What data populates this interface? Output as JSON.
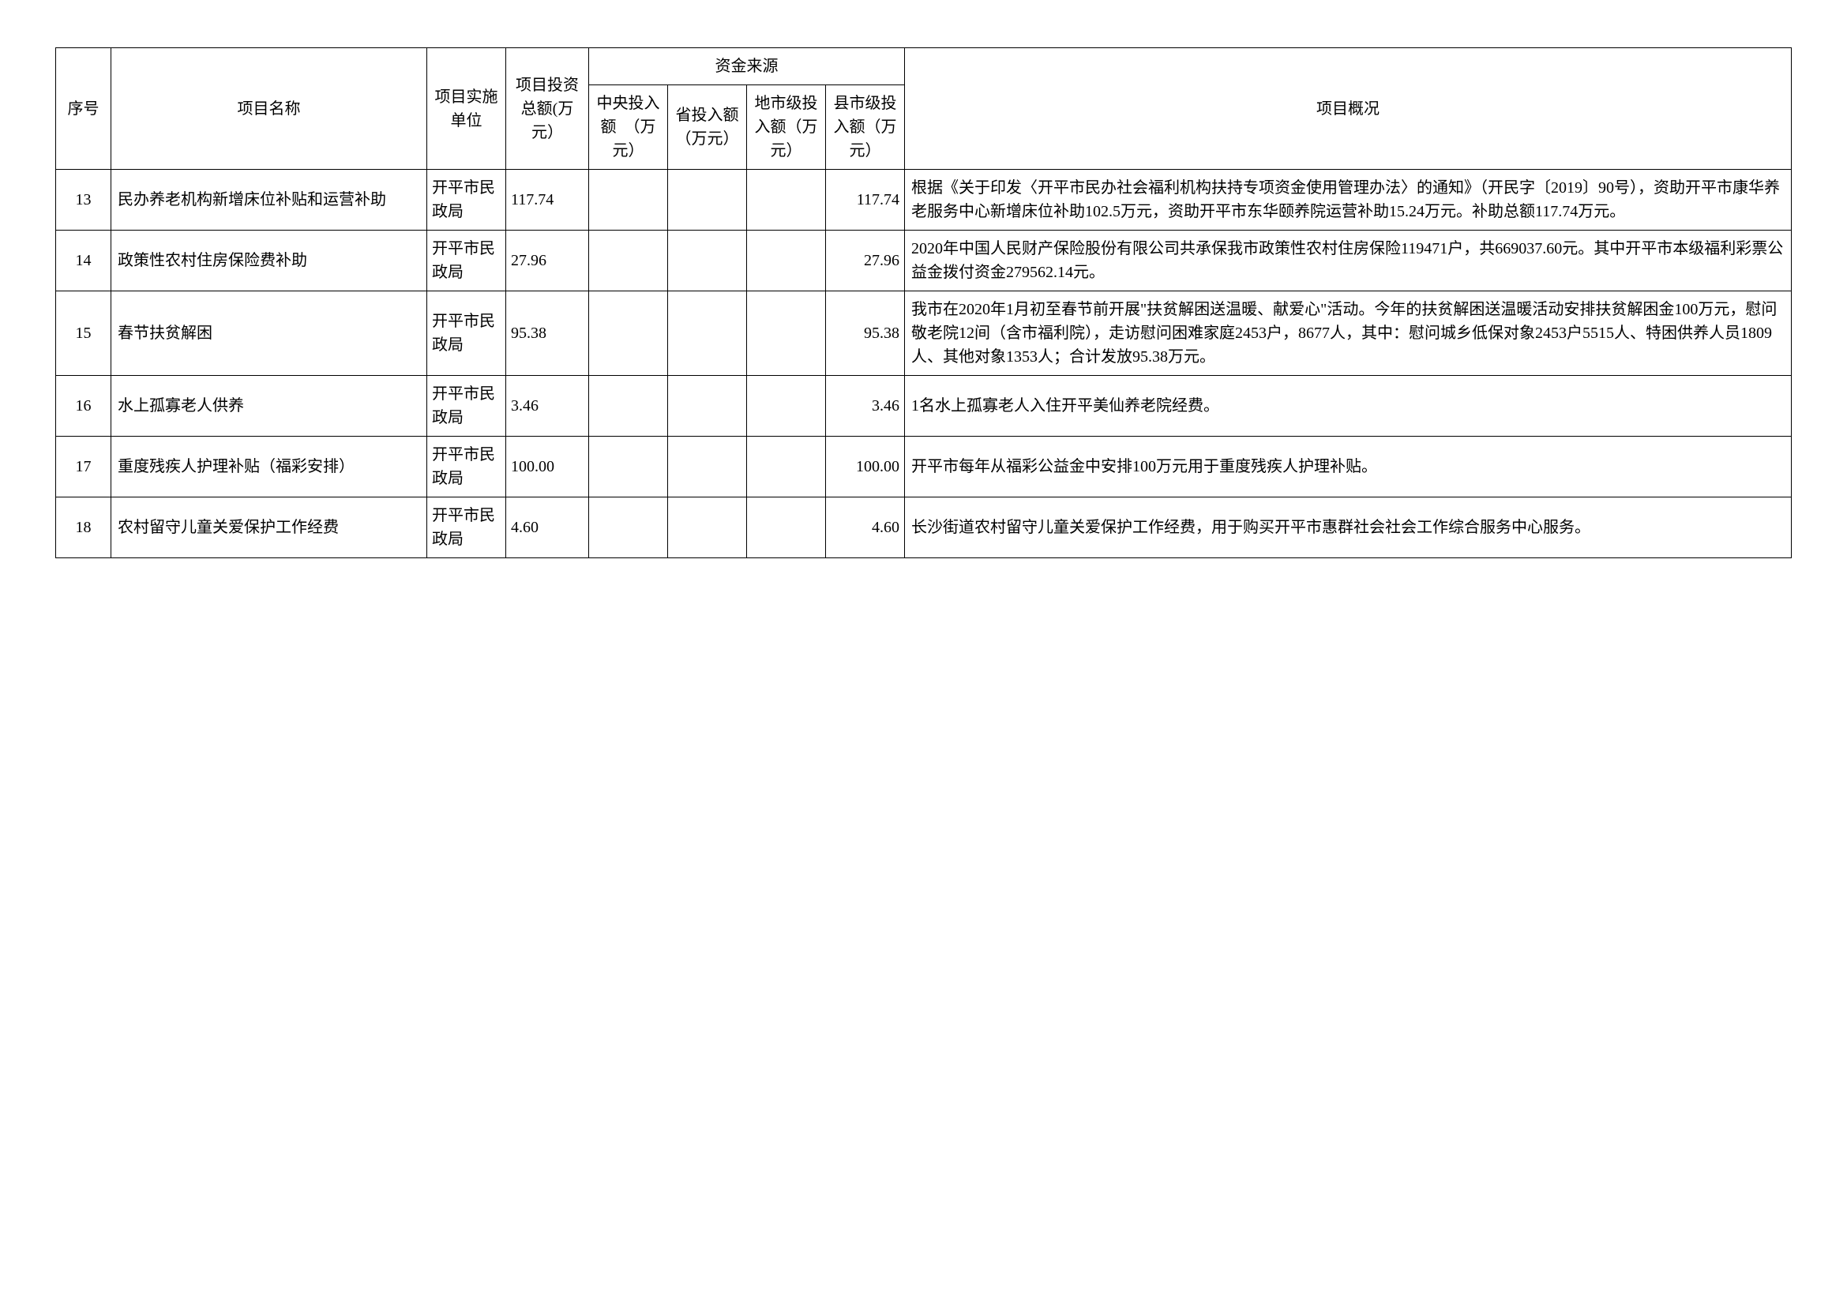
{
  "headers": {
    "seq": "序号",
    "name": "项目名称",
    "unit": "项目实施单位",
    "total": "项目投资总额(万元）",
    "sourceGroup": "资金来源",
    "central": "中央投入额　（万元）",
    "province": "省投入额（万元）",
    "city": "地市级投入额（万元）",
    "county": "县市级投入额（万元）",
    "desc": "项目概况"
  },
  "rows": [
    {
      "seq": "13",
      "name": "民办养老机构新增床位补贴和运营补助",
      "unit": "开平市民政局",
      "total": "117.74",
      "central": "",
      "province": "",
      "city": "",
      "county": "117.74",
      "desc": "根据《关于印发〈开平市民办社会福利机构扶持专项资金使用管理办法〉的通知》（开民字〔2019〕90号），资助开平市康华养老服务中心新增床位补助102.5万元，资助开平市东华颐养院运营补助15.24万元。补助总额117.74万元。"
    },
    {
      "seq": "14",
      "name": "政策性农村住房保险费补助",
      "unit": "开平市民政局",
      "total": "27.96",
      "central": "",
      "province": "",
      "city": "",
      "county": "27.96",
      "desc": "2020年中国人民财产保险股份有限公司共承保我市政策性农村住房保险119471户，共669037.60元。其中开平市本级福利彩票公益金拨付资金279562.14元。"
    },
    {
      "seq": "15",
      "name": "春节扶贫解困",
      "unit": "开平市民政局",
      "total": "95.38",
      "central": "",
      "province": "",
      "city": "",
      "county": "95.38",
      "desc": "我市在2020年1月初至春节前开展\"扶贫解困送温暖、献爱心\"活动。今年的扶贫解困送温暖活动安排扶贫解困金100万元，慰问敬老院12间（含市福利院），走访慰问困难家庭2453户，8677人，其中：慰问城乡低保对象2453户5515人、特困供养人员1809人、其他对象1353人；合计发放95.38万元。"
    },
    {
      "seq": "16",
      "name": "水上孤寡老人供养",
      "unit": "开平市民政局",
      "total": "3.46",
      "central": "",
      "province": "",
      "city": "",
      "county": "3.46",
      "desc": "1名水上孤寡老人入住开平美仙养老院经费。"
    },
    {
      "seq": "17",
      "name": "重度残疾人护理补贴（福彩安排）",
      "unit": "开平市民政局",
      "total": "100.00",
      "central": "",
      "province": "",
      "city": "",
      "county": "100.00",
      "desc": "开平市每年从福彩公益金中安排100万元用于重度残疾人护理补贴。"
    },
    {
      "seq": "18",
      "name": "农村留守儿童关爱保护工作经费",
      "unit": "开平市民政局",
      "total": "4.60",
      "central": "",
      "province": "",
      "city": "",
      "county": "4.60",
      "desc": "长沙街道农村留守儿童关爱保护工作经费，用于购买开平市惠群社会社会工作综合服务中心服务。"
    }
  ]
}
